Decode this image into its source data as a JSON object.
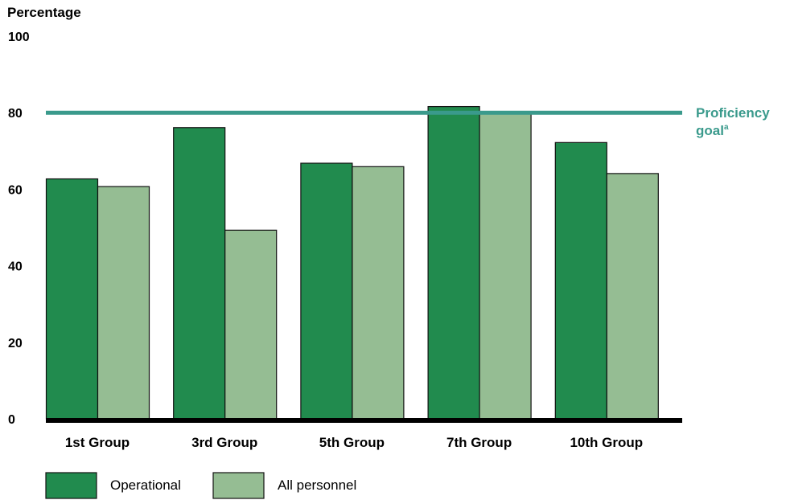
{
  "chart_data": {
    "type": "bar",
    "ylabel": "Percentage",
    "ylim": [
      0,
      100
    ],
    "yticks": [
      "0",
      "20",
      "40",
      "60",
      "80",
      "100"
    ],
    "categories": [
      "1st Group",
      "3rd Group",
      "5th Group",
      "7th Group",
      "10th Group"
    ],
    "series": [
      {
        "name": "Operational",
        "values": [
          62.7,
          76.1,
          66.8,
          81.6,
          72.2
        ],
        "color": "#218b4e"
      },
      {
        "name": "All personnel",
        "values": [
          60.7,
          49.3,
          65.9,
          80.0,
          64.1
        ],
        "color": "#95bd93"
      }
    ],
    "reference_line": {
      "value": 80,
      "label_main": "Proficiency",
      "label_second": "goal",
      "label_superscript": "a",
      "color": "#3a9a8c"
    },
    "legend_placement": "bottom-left",
    "grid": false
  }
}
